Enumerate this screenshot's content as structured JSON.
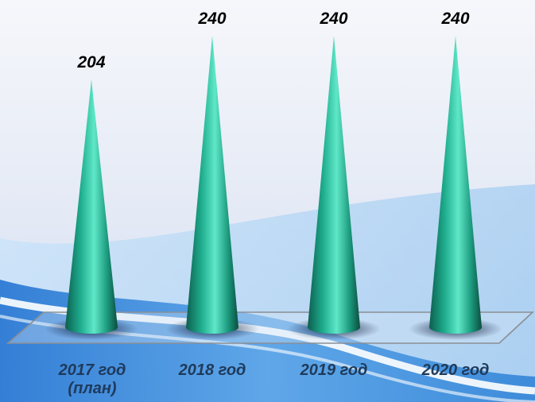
{
  "chart_data": {
    "type": "bar",
    "shape": "cone",
    "style": "3d",
    "categories": [
      "2017 год (план)",
      "2018 год",
      "2019 год",
      "2020 год"
    ],
    "category_lines": [
      [
        "2017 год",
        "(план)"
      ],
      [
        "2018 год"
      ],
      [
        "2019 год"
      ],
      [
        "2020 год"
      ]
    ],
    "values": [
      204,
      240,
      240,
      240
    ],
    "data_labels": [
      "204",
      "240",
      "240",
      "240"
    ],
    "ylim": [
      180,
      240
    ],
    "grid": false,
    "legend": "none",
    "title": "",
    "xlabel": "",
    "ylabel": ""
  },
  "colors": {
    "cone_dark": "#0c5f4e",
    "cone_mid": "#1fae8f",
    "cone_light": "#5fe8c8",
    "label_text": "#1f3a5a",
    "value_text": "#000000",
    "background_top": "#f4f6fb",
    "background_bottom": "#c9dbf0",
    "wave": "#1d6fc0"
  }
}
